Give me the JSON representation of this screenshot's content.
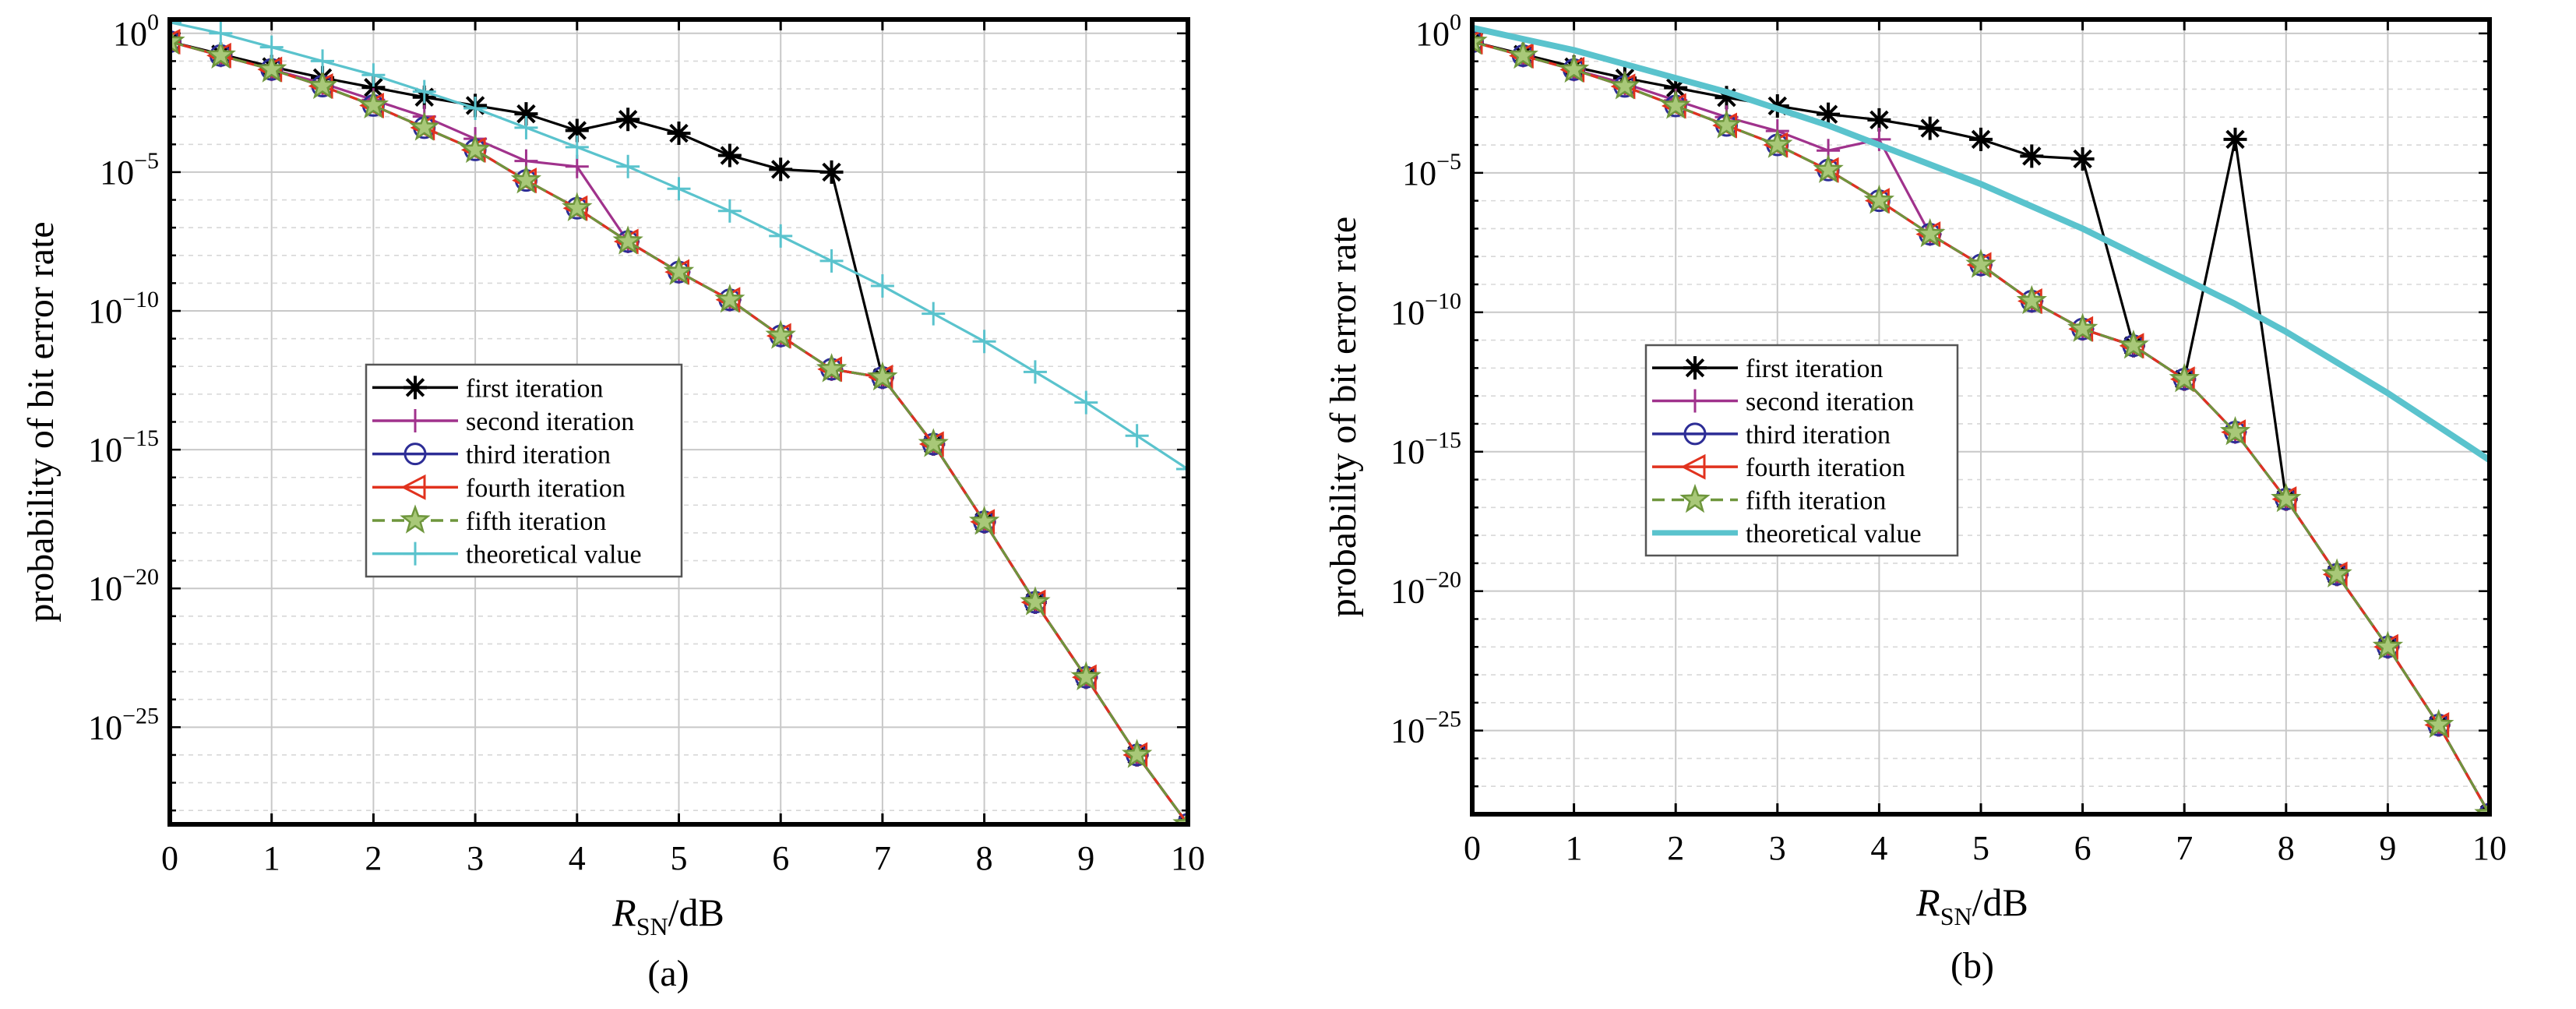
{
  "chart_data": [
    {
      "type": "line",
      "caption": "(a)",
      "xlabel_main": "R",
      "xlabel_sub": "SN",
      "xlabel_unit": "/dB",
      "ylabel": "probability of bit error rate",
      "xlim": [
        0,
        10
      ],
      "ylim_log10": [
        -28.5,
        0.5
      ],
      "y_scale": "log",
      "grid": true,
      "legend_position": "center-left",
      "x_ticks": [
        "0",
        "1",
        "2",
        "3",
        "4",
        "5",
        "6",
        "7",
        "8",
        "9",
        "10"
      ],
      "y_ticks": [
        {
          "base": "10",
          "exp": "0"
        },
        {
          "base": "10",
          "exp": "−5"
        },
        {
          "base": "10",
          "exp": "−10"
        },
        {
          "base": "10",
          "exp": "−15"
        },
        {
          "base": "10",
          "exp": "−20"
        },
        {
          "base": "10",
          "exp": "−25"
        }
      ],
      "series": [
        {
          "name": "first iteration",
          "color": "#000000",
          "marker": "asterisk",
          "dash": "solid",
          "x": [
            0,
            0.5,
            1,
            1.5,
            2,
            2.5,
            3,
            3.5,
            4,
            4.5,
            5,
            5.5,
            6,
            6.5,
            7,
            7.5,
            8,
            8.5,
            9,
            9.5,
            10
          ],
          "log10_y": [
            -0.3,
            -0.75,
            -1.2,
            -1.6,
            -1.95,
            -2.3,
            -2.6,
            -2.9,
            -3.5,
            -3.1,
            -3.6,
            -4.4,
            -4.9,
            -5.0,
            -12.4,
            -14.8,
            -17.6,
            -20.5,
            -23.2,
            -26.0,
            -28.5
          ]
        },
        {
          "name": "second iteration",
          "color": "#a0328c",
          "marker": "plus",
          "dash": "solid",
          "x": [
            0,
            0.5,
            1,
            1.5,
            2,
            2.5,
            3,
            3.5,
            4,
            4.5,
            5,
            5.5,
            6,
            6.5,
            7,
            7.5,
            8,
            8.5,
            9,
            9.5,
            10
          ],
          "log10_y": [
            -0.3,
            -0.8,
            -1.3,
            -1.8,
            -2.4,
            -3.0,
            -3.8,
            -4.6,
            -4.8,
            -7.5,
            -8.6,
            -9.6,
            -10.9,
            -12.1,
            -12.4,
            -14.8,
            -17.6,
            -20.5,
            -23.2,
            -26.0,
            -28.5
          ]
        },
        {
          "name": "third iteration",
          "color": "#2d2d96",
          "marker": "circle",
          "dash": "solid",
          "x": [
            0,
            0.5,
            1,
            1.5,
            2,
            2.5,
            3,
            3.5,
            4,
            4.5,
            5,
            5.5,
            6,
            6.5,
            7,
            7.5,
            8,
            8.5,
            9,
            9.5,
            10
          ],
          "log10_y": [
            -0.3,
            -0.8,
            -1.3,
            -1.9,
            -2.6,
            -3.4,
            -4.2,
            -5.3,
            -6.3,
            -7.5,
            -8.6,
            -9.6,
            -10.9,
            -12.1,
            -12.4,
            -14.8,
            -17.6,
            -20.5,
            -23.2,
            -26.0,
            -28.5
          ]
        },
        {
          "name": "fourth iteration",
          "color": "#e1321e",
          "marker": "triangle-left",
          "dash": "solid",
          "x": [
            0,
            0.5,
            1,
            1.5,
            2,
            2.5,
            3,
            3.5,
            4,
            4.5,
            5,
            5.5,
            6,
            6.5,
            7,
            7.5,
            8,
            8.5,
            9,
            9.5,
            10
          ],
          "log10_y": [
            -0.3,
            -0.8,
            -1.3,
            -1.9,
            -2.6,
            -3.4,
            -4.2,
            -5.3,
            -6.3,
            -7.5,
            -8.6,
            -9.6,
            -10.9,
            -12.1,
            -12.4,
            -14.8,
            -17.6,
            -20.5,
            -23.2,
            -26.0,
            -28.5
          ]
        },
        {
          "name": "fifth iteration",
          "color": "#6e963c",
          "marker": "star",
          "dash": "dashed",
          "x": [
            0,
            0.5,
            1,
            1.5,
            2,
            2.5,
            3,
            3.5,
            4,
            4.5,
            5,
            5.5,
            6,
            6.5,
            7,
            7.5,
            8,
            8.5,
            9,
            9.5,
            10
          ],
          "log10_y": [
            -0.3,
            -0.8,
            -1.3,
            -1.9,
            -2.6,
            -3.4,
            -4.2,
            -5.3,
            -6.3,
            -7.5,
            -8.6,
            -9.6,
            -10.9,
            -12.1,
            -12.4,
            -14.8,
            -17.6,
            -20.5,
            -23.2,
            -26.0,
            -28.5
          ]
        },
        {
          "name": "theoretical value",
          "color": "#5ac3cd",
          "marker": "plus",
          "dash": "solid",
          "x": [
            0,
            0.5,
            1,
            1.5,
            2,
            2.5,
            3,
            3.5,
            4,
            4.5,
            5,
            5.5,
            6,
            6.5,
            7,
            7.5,
            8,
            8.5,
            9,
            9.5,
            10
          ],
          "log10_y": [
            0.4,
            0.0,
            -0.5,
            -1.0,
            -1.5,
            -2.1,
            -2.7,
            -3.4,
            -4.1,
            -4.8,
            -5.6,
            -6.4,
            -7.3,
            -8.2,
            -9.1,
            -10.1,
            -11.1,
            -12.2,
            -13.3,
            -14.5,
            -15.7
          ]
        }
      ]
    },
    {
      "type": "line",
      "caption": "(b)",
      "xlabel_main": "R",
      "xlabel_sub": "SN",
      "xlabel_unit": "/dB",
      "ylabel": "probability of bit error rate",
      "xlim": [
        0,
        10
      ],
      "ylim_log10": [
        -28.0,
        0.5
      ],
      "y_scale": "log",
      "grid": true,
      "legend_position": "center-left",
      "x_ticks": [
        "0",
        "1",
        "2",
        "3",
        "4",
        "5",
        "6",
        "7",
        "8",
        "9",
        "10"
      ],
      "y_ticks": [
        {
          "base": "10",
          "exp": "0"
        },
        {
          "base": "10",
          "exp": "−5"
        },
        {
          "base": "10",
          "exp": "−10"
        },
        {
          "base": "10",
          "exp": "−15"
        },
        {
          "base": "10",
          "exp": "−20"
        },
        {
          "base": "10",
          "exp": "−25"
        }
      ],
      "series": [
        {
          "name": "first iteration",
          "color": "#000000",
          "marker": "asterisk",
          "dash": "solid",
          "x": [
            0,
            0.5,
            1,
            1.5,
            2,
            2.5,
            3,
            3.5,
            4,
            4.5,
            5,
            5.5,
            6,
            6.5,
            7,
            7.5,
            8,
            8.5,
            9,
            9.5,
            10
          ],
          "log10_y": [
            -0.3,
            -0.75,
            -1.2,
            -1.6,
            -1.95,
            -2.3,
            -2.6,
            -2.9,
            -3.1,
            -3.4,
            -3.8,
            -4.4,
            -4.5,
            -11.2,
            -12.4,
            -3.8,
            -16.7,
            -19.4,
            -22.0,
            -24.8,
            -28.0
          ]
        },
        {
          "name": "second iteration",
          "color": "#a0328c",
          "marker": "plus",
          "dash": "solid",
          "x": [
            0,
            0.5,
            1,
            1.5,
            2,
            2.5,
            3,
            3.5,
            4,
            4.5,
            5,
            5.5,
            6,
            6.5,
            7,
            7.5,
            8,
            8.5,
            9,
            9.5,
            10
          ],
          "log10_y": [
            -0.3,
            -0.8,
            -1.3,
            -1.8,
            -2.4,
            -3.0,
            -3.5,
            -4.2,
            -3.8,
            -7.2,
            -8.3,
            -9.6,
            -10.6,
            -11.2,
            -12.4,
            -14.3,
            -16.7,
            -19.4,
            -22.0,
            -24.8,
            -28.0
          ]
        },
        {
          "name": "third iteration",
          "color": "#2d2d96",
          "marker": "circle",
          "dash": "solid",
          "x": [
            0,
            0.5,
            1,
            1.5,
            2,
            2.5,
            3,
            3.5,
            4,
            4.5,
            5,
            5.5,
            6,
            6.5,
            7,
            7.5,
            8,
            8.5,
            9,
            9.5,
            10
          ],
          "log10_y": [
            -0.3,
            -0.8,
            -1.3,
            -1.9,
            -2.6,
            -3.3,
            -4.0,
            -4.9,
            -6.0,
            -7.2,
            -8.3,
            -9.6,
            -10.6,
            -11.2,
            -12.4,
            -14.3,
            -16.7,
            -19.4,
            -22.0,
            -24.8,
            -28.0
          ]
        },
        {
          "name": "fourth iteration",
          "color": "#e1321e",
          "marker": "triangle-left",
          "dash": "solid",
          "x": [
            0,
            0.5,
            1,
            1.5,
            2,
            2.5,
            3,
            3.5,
            4,
            4.5,
            5,
            5.5,
            6,
            6.5,
            7,
            7.5,
            8,
            8.5,
            9,
            9.5,
            10
          ],
          "log10_y": [
            -0.3,
            -0.8,
            -1.3,
            -1.9,
            -2.6,
            -3.3,
            -4.0,
            -4.9,
            -6.0,
            -7.2,
            -8.3,
            -9.6,
            -10.6,
            -11.2,
            -12.4,
            -14.3,
            -16.7,
            -19.4,
            -22.0,
            -24.8,
            -28.0
          ]
        },
        {
          "name": "fifth iteration",
          "color": "#6e963c",
          "marker": "star",
          "dash": "dashed",
          "x": [
            0,
            0.5,
            1,
            1.5,
            2,
            2.5,
            3,
            3.5,
            4,
            4.5,
            5,
            5.5,
            6,
            6.5,
            7,
            7.5,
            8,
            8.5,
            9,
            9.5,
            10
          ],
          "log10_y": [
            -0.3,
            -0.8,
            -1.3,
            -1.9,
            -2.6,
            -3.3,
            -4.0,
            -4.9,
            -6.0,
            -7.2,
            -8.3,
            -9.6,
            -10.6,
            -11.2,
            -12.4,
            -14.3,
            -16.7,
            -19.4,
            -22.0,
            -24.8,
            -28.0
          ]
        },
        {
          "name": "theoretical value",
          "color": "#5ac3cd",
          "marker": "none",
          "dash": "solid",
          "thick": true,
          "x": [
            0,
            0.5,
            1,
            1.5,
            2,
            2.5,
            3,
            3.5,
            4,
            4.5,
            5,
            5.5,
            6,
            6.5,
            7,
            7.5,
            8,
            8.5,
            9,
            9.5,
            10
          ],
          "log10_y": [
            0.2,
            -0.2,
            -0.6,
            -1.1,
            -1.6,
            -2.1,
            -2.7,
            -3.3,
            -4.0,
            -4.7,
            -5.4,
            -6.2,
            -7.0,
            -7.9,
            -8.8,
            -9.7,
            -10.7,
            -11.8,
            -12.9,
            -14.1,
            -15.3
          ]
        }
      ]
    }
  ]
}
